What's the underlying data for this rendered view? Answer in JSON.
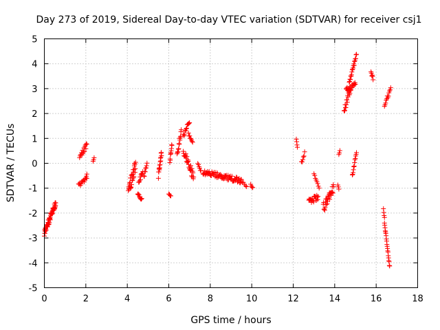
{
  "chart_data": {
    "type": "scatter",
    "title": "Day 273 of 2019, Sidereal Day-to-day VTEC variation (SDTVAR) for receiver csj1",
    "xlabel": "GPS time / hours",
    "ylabel": "SDTVAR / TECUs",
    "xlim": [
      0,
      18
    ],
    "ylim": [
      -5,
      5
    ],
    "xticks": [
      "0",
      "2",
      "4",
      "6",
      "8",
      "10",
      "12",
      "14",
      "16",
      "18"
    ],
    "yticks": [
      "-5",
      "-4",
      "-3",
      "-2",
      "-1",
      "0",
      "1",
      "2",
      "3",
      "4",
      "5"
    ],
    "grid": true,
    "marker": "+",
    "color": "#ff0000",
    "segments": [
      {
        "x0": 0.0,
        "x1": 0.55,
        "y0": -2.8,
        "y1": -1.6,
        "spread": 0.25,
        "n": 60
      },
      {
        "x0": 1.65,
        "x1": 2.05,
        "y0": -0.9,
        "y1": -0.6,
        "spread": 0.15,
        "n": 14
      },
      {
        "x0": 1.7,
        "x1": 2.05,
        "y0": 0.2,
        "y1": 0.75,
        "spread": 0.2,
        "n": 16
      },
      {
        "x0": 2.0,
        "x1": 2.05,
        "y0": -0.6,
        "y1": -0.45,
        "spread": 0.05,
        "n": 3
      },
      {
        "x0": 2.35,
        "x1": 2.4,
        "y0": 0.1,
        "y1": 0.2,
        "spread": 0.05,
        "n": 3
      },
      {
        "x0": 4.05,
        "x1": 4.4,
        "y0": -1.1,
        "y1": -0.1,
        "spread": 0.5,
        "n": 30
      },
      {
        "x0": 4.5,
        "x1": 4.7,
        "y0": -1.2,
        "y1": -1.45,
        "spread": 0.1,
        "n": 10
      },
      {
        "x0": 4.55,
        "x1": 4.75,
        "y0": -0.75,
        "y1": -0.35,
        "spread": 0.2,
        "n": 10
      },
      {
        "x0": 4.8,
        "x1": 4.95,
        "y0": -0.55,
        "y1": 0.0,
        "spread": 0.2,
        "n": 8
      },
      {
        "x0": 5.5,
        "x1": 5.65,
        "y0": -0.5,
        "y1": 0.45,
        "spread": 0.3,
        "n": 16
      },
      {
        "x0": 6.0,
        "x1": 6.1,
        "y0": -1.25,
        "y1": -1.3,
        "spread": 0.05,
        "n": 4
      },
      {
        "x0": 6.05,
        "x1": 6.15,
        "y0": 0.05,
        "y1": 0.75,
        "spread": 0.2,
        "n": 10
      },
      {
        "x0": 6.4,
        "x1": 6.6,
        "y0": 0.3,
        "y1": 1.3,
        "spread": 0.2,
        "n": 14
      },
      {
        "x0": 6.7,
        "x1": 7.0,
        "y0": 1.1,
        "y1": 1.7,
        "spread": 0.15,
        "n": 12
      },
      {
        "x0": 6.7,
        "x1": 7.2,
        "y0": 0.5,
        "y1": -0.55,
        "spread": 0.35,
        "n": 30
      },
      {
        "x0": 6.95,
        "x1": 7.15,
        "y0": 1.2,
        "y1": 0.8,
        "spread": 0.1,
        "n": 8
      },
      {
        "x0": 7.4,
        "x1": 7.55,
        "y0": 0.05,
        "y1": -0.3,
        "spread": 0.15,
        "n": 6
      },
      {
        "x0": 7.65,
        "x1": 9.5,
        "y0": -0.35,
        "y1": -0.7,
        "spread": 0.2,
        "n": 70
      },
      {
        "x0": 9.5,
        "x1": 9.75,
        "y0": -0.7,
        "y1": -0.95,
        "spread": 0.1,
        "n": 6
      },
      {
        "x0": 9.95,
        "x1": 10.05,
        "y0": -0.85,
        "y1": -1.0,
        "spread": 0.05,
        "n": 4
      },
      {
        "x0": 12.15,
        "x1": 12.2,
        "y0": 0.95,
        "y1": 0.65,
        "spread": 0.05,
        "n": 4
      },
      {
        "x0": 12.4,
        "x1": 12.55,
        "y0": 0.0,
        "y1": 0.4,
        "spread": 0.15,
        "n": 6
      },
      {
        "x0": 12.75,
        "x1": 13.2,
        "y0": -1.55,
        "y1": -1.35,
        "spread": 0.25,
        "n": 22
      },
      {
        "x0": 13.0,
        "x1": 13.25,
        "y0": -0.45,
        "y1": -0.95,
        "spread": 0.1,
        "n": 8
      },
      {
        "x0": 13.45,
        "x1": 13.95,
        "y0": -1.8,
        "y1": -1.0,
        "spread": 0.4,
        "n": 30
      },
      {
        "x0": 14.15,
        "x1": 14.2,
        "y0": -0.85,
        "y1": -1.05,
        "spread": 0.05,
        "n": 3
      },
      {
        "x0": 14.2,
        "x1": 14.25,
        "y0": 0.35,
        "y1": 0.5,
        "spread": 0.05,
        "n": 3
      },
      {
        "x0": 14.45,
        "x1": 14.75,
        "y0": 2.1,
        "y1": 3.0,
        "spread": 0.3,
        "n": 18
      },
      {
        "x0": 14.55,
        "x1": 15.0,
        "y0": 2.9,
        "y1": 3.2,
        "spread": 0.25,
        "n": 20
      },
      {
        "x0": 14.7,
        "x1": 15.05,
        "y0": 3.2,
        "y1": 4.35,
        "spread": 0.15,
        "n": 20
      },
      {
        "x0": 14.85,
        "x1": 15.05,
        "y0": -0.5,
        "y1": 0.45,
        "spread": 0.1,
        "n": 12
      },
      {
        "x0": 15.75,
        "x1": 15.85,
        "y0": 3.65,
        "y1": 3.4,
        "spread": 0.1,
        "n": 6
      },
      {
        "x0": 16.35,
        "x1": 16.4,
        "y0": -1.85,
        "y1": -2.2,
        "spread": 0.05,
        "n": 4
      },
      {
        "x0": 16.4,
        "x1": 16.65,
        "y0": -2.4,
        "y1": -4.15,
        "spread": 0.1,
        "n": 20
      },
      {
        "x0": 16.4,
        "x1": 16.7,
        "y0": 2.35,
        "y1": 3.0,
        "spread": 0.15,
        "n": 12
      }
    ]
  }
}
